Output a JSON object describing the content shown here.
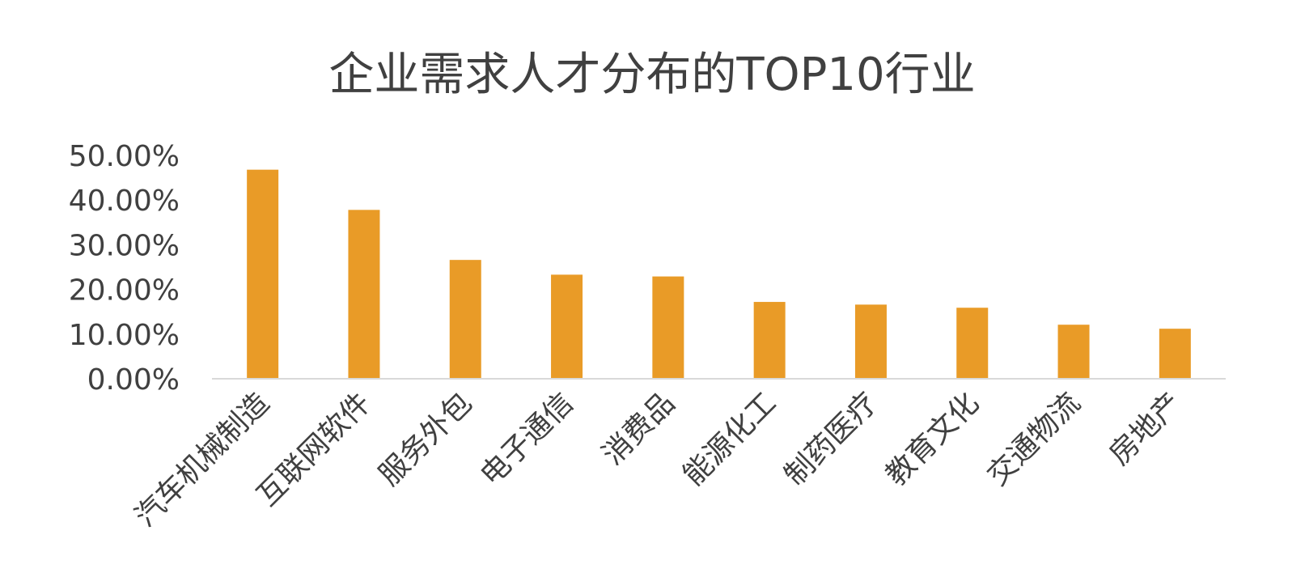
{
  "chart_data": {
    "type": "bar",
    "title": "企业需求人才分布的TOP10行业",
    "xlabel": "",
    "ylabel": "",
    "categories": [
      "汽车机械制造",
      "互联网软件",
      "服务外包",
      "电子通信",
      "消费品",
      "能源化工",
      "制药医疗",
      "教育文化",
      "交通物流",
      "房地产"
    ],
    "series": [
      {
        "values": [
          46.8,
          37.8,
          26.6,
          23.3,
          22.9,
          17.2,
          16.6,
          15.9,
          12.1,
          11.2
        ]
      }
    ],
    "ylim": [
      0,
      50
    ],
    "yticks": [
      "0.00%",
      "10.00%",
      "20.00%",
      "30.00%",
      "40.00%",
      "50.00%"
    ],
    "grid": false,
    "legend": "none",
    "colors": {
      "bar": "#E99B27",
      "axis": "#D9D9D9",
      "text": "#404040"
    }
  }
}
